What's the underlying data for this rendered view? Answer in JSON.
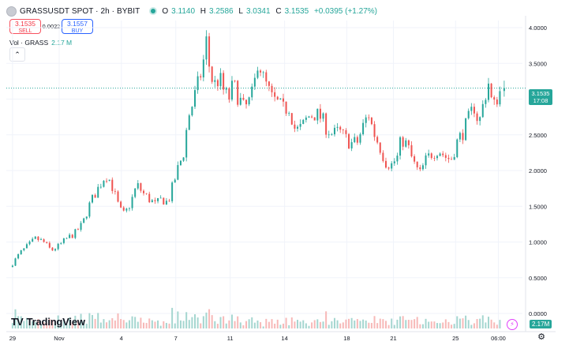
{
  "legend": {
    "symbol": "GRASSUSDT SPOT · 2h · BYBIT",
    "o_key": "O",
    "o": "3.1140",
    "h_key": "H",
    "h": "3.2586",
    "l_key": "L",
    "l": "3.0341",
    "c_key": "C",
    "c": "3.1535",
    "change": "+0.0395 (+1.27%)"
  },
  "trade": {
    "sell_price": "3.1535",
    "sell_label": "SELL",
    "spread": "0.0022",
    "buy_price": "3.1557",
    "buy_label": "BUY"
  },
  "volume_legend": {
    "label": "Vol · GRASS",
    "value": "2.17 M"
  },
  "collapse_icon": "chevron-up-icon",
  "price_tag": {
    "price": "3.1535",
    "countdown": "17:08"
  },
  "volume_tag": "2.17M",
  "logo": {
    "mark": "TV",
    "text": "TradingView"
  },
  "colors": {
    "up": "#26a69a",
    "down": "#ef5350",
    "up_vol": "#a5d6d0",
    "down_vol": "#f7b9b8"
  },
  "chart_data": {
    "type": "candlestick",
    "y_ticks": [
      "4.0000",
      "3.5000",
      "3.0000",
      "2.5000",
      "2.0000",
      "1.5000",
      "1.0000",
      "0.5000",
      "0.0000"
    ],
    "y_tick_values": [
      4.0,
      3.5,
      3.0,
      2.5,
      2.0,
      1.5,
      1.0,
      0.5,
      0.0
    ],
    "ylim": [
      0.0,
      4.1
    ],
    "x_ticks": [
      "29",
      "Nov",
      "4",
      "7",
      "11",
      "14",
      "18",
      "21",
      "25",
      "06:00"
    ],
    "x_tick_days": [
      0,
      3,
      7,
      10.5,
      14,
      17.5,
      21.5,
      24.5,
      28.5,
      31.25
    ],
    "xlim_days": [
      -0.4,
      32.8
    ],
    "last_price": 3.1535,
    "series": [
      {
        "day": 0.0,
        "close": 0.7
      },
      {
        "day": 0.5,
        "close": 0.85
      },
      {
        "day": 1.0,
        "close": 0.95
      },
      {
        "day": 1.5,
        "close": 1.05
      },
      {
        "day": 2.0,
        "close": 1.0
      },
      {
        "day": 2.5,
        "close": 0.88
      },
      {
        "day": 3.0,
        "close": 0.95
      },
      {
        "day": 3.5,
        "close": 1.05
      },
      {
        "day": 4.0,
        "close": 1.12
      },
      {
        "day": 4.5,
        "close": 1.25
      },
      {
        "day": 5.0,
        "close": 1.55
      },
      {
        "day": 5.5,
        "close": 1.75
      },
      {
        "day": 6.0,
        "close": 1.95
      },
      {
        "day": 6.3,
        "close": 1.85
      },
      {
        "day": 6.6,
        "close": 1.65
      },
      {
        "day": 6.9,
        "close": 1.45
      },
      {
        "day": 7.2,
        "close": 1.38
      },
      {
        "day": 7.6,
        "close": 1.55
      },
      {
        "day": 8.0,
        "close": 1.8
      },
      {
        "day": 8.4,
        "close": 1.68
      },
      {
        "day": 8.8,
        "close": 1.6
      },
      {
        "day": 9.2,
        "close": 1.52
      },
      {
        "day": 9.6,
        "close": 1.6
      },
      {
        "day": 10.0,
        "close": 1.55
      },
      {
        "day": 10.3,
        "close": 1.78
      },
      {
        "day": 10.6,
        "close": 2.0
      },
      {
        "day": 11.0,
        "close": 2.25
      },
      {
        "day": 11.3,
        "close": 2.75
      },
      {
        "day": 11.6,
        "close": 2.95
      },
      {
        "day": 12.0,
        "close": 3.25
      },
      {
        "day": 12.3,
        "close": 3.55
      },
      {
        "day": 12.5,
        "close": 3.85
      },
      {
        "day": 12.7,
        "close": 3.35
      },
      {
        "day": 13.0,
        "close": 3.2
      },
      {
        "day": 13.3,
        "close": 3.3
      },
      {
        "day": 13.6,
        "close": 3.1
      },
      {
        "day": 13.9,
        "close": 3.0
      },
      {
        "day": 14.2,
        "close": 3.2
      },
      {
        "day": 14.5,
        "close": 3.05
      },
      {
        "day": 14.9,
        "close": 2.85
      },
      {
        "day": 15.2,
        "close": 2.95
      },
      {
        "day": 15.5,
        "close": 3.1
      },
      {
        "day": 15.8,
        "close": 3.6
      },
      {
        "day": 16.1,
        "close": 3.3
      },
      {
        "day": 16.4,
        "close": 3.15
      },
      {
        "day": 16.7,
        "close": 3.0
      },
      {
        "day": 17.0,
        "close": 2.95
      },
      {
        "day": 17.4,
        "close": 2.85
      },
      {
        "day": 17.8,
        "close": 2.9
      },
      {
        "day": 18.2,
        "close": 2.55
      },
      {
        "day": 18.6,
        "close": 2.6
      },
      {
        "day": 19.0,
        "close": 2.75
      },
      {
        "day": 19.4,
        "close": 2.8
      },
      {
        "day": 19.8,
        "close": 2.75
      },
      {
        "day": 20.2,
        "close": 2.6
      },
      {
        "day": 20.6,
        "close": 2.5
      },
      {
        "day": 21.0,
        "close": 2.55
      },
      {
        "day": 21.4,
        "close": 2.45
      },
      {
        "day": 21.8,
        "close": 2.38
      },
      {
        "day": 22.2,
        "close": 2.4
      },
      {
        "day": 22.6,
        "close": 2.65
      },
      {
        "day": 22.9,
        "close": 2.8
      },
      {
        "day": 23.2,
        "close": 2.55
      },
      {
        "day": 23.6,
        "close": 2.35
      },
      {
        "day": 24.0,
        "close": 2.12
      },
      {
        "day": 24.4,
        "close": 2.08
      },
      {
        "day": 24.8,
        "close": 2.2
      },
      {
        "day": 25.0,
        "close": 2.45
      },
      {
        "day": 25.4,
        "close": 2.35
      },
      {
        "day": 25.8,
        "close": 2.1
      },
      {
        "day": 26.2,
        "close": 1.95
      },
      {
        "day": 26.6,
        "close": 2.15
      },
      {
        "day": 27.0,
        "close": 2.25
      },
      {
        "day": 27.4,
        "close": 2.3
      },
      {
        "day": 27.8,
        "close": 2.2
      },
      {
        "day": 28.2,
        "close": 2.15
      },
      {
        "day": 28.6,
        "close": 2.4
      },
      {
        "day": 29.0,
        "close": 2.55
      },
      {
        "day": 29.4,
        "close": 2.75
      },
      {
        "day": 29.7,
        "close": 2.9
      },
      {
        "day": 30.0,
        "close": 2.65
      },
      {
        "day": 30.3,
        "close": 2.95
      },
      {
        "day": 30.6,
        "close": 3.25
      },
      {
        "day": 30.9,
        "close": 2.85
      },
      {
        "day": 31.2,
        "close": 3.05
      },
      {
        "day": 31.5,
        "close": 3.15
      }
    ]
  }
}
